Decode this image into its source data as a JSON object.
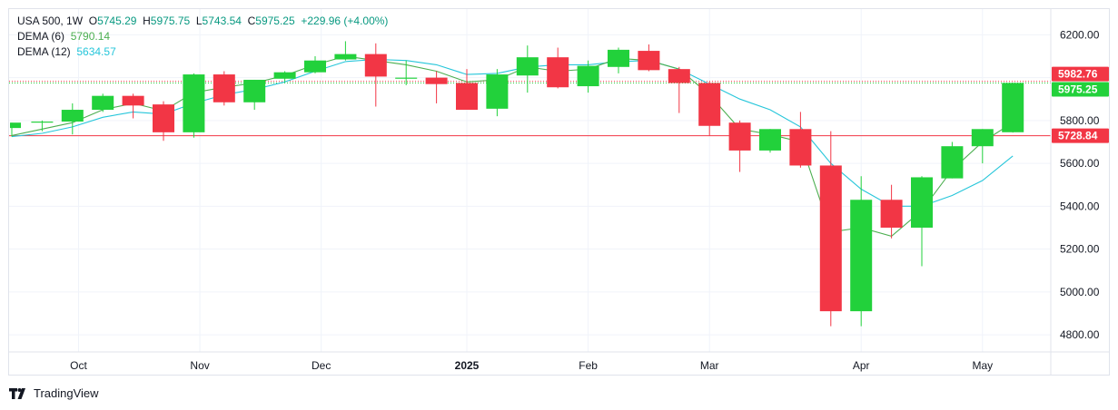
{
  "legend": {
    "symbol": "USA 500, 1W",
    "o_label": "O",
    "o_value": "5745.29",
    "h_label": "H",
    "h_value": "5975.75",
    "l_label": "L",
    "l_value": "5743.54",
    "c_label": "C",
    "c_value": "5975.25",
    "change": "+229.96 (+4.00%)",
    "dema6_label": "DEMA (6)",
    "dema6_value": "5790.14",
    "dema12_label": "DEMA (12)",
    "dema12_value": "5634.57"
  },
  "brand": {
    "name": "TradingView"
  },
  "colors": {
    "up": "#22d13b",
    "down": "#f23645",
    "dema6": "#4caf50",
    "dema12": "#26c6da",
    "line_red": "#f23645",
    "tag_red": "#f23645",
    "tag_green": "#22d13b",
    "grid": "#f0f3fa",
    "axis": "#e0e3eb"
  },
  "chart_data": {
    "type": "candlestick",
    "timeframe": "1W",
    "ylim": [
      4720,
      6320
    ],
    "y_ticks": [
      4800,
      5000,
      5200,
      5400,
      5600,
      5800,
      6000,
      6200
    ],
    "y_tick_labels": [
      "4800.00",
      "5000.00",
      "5200.00",
      "5400.00",
      "5600.00",
      "5800.00",
      "6000.00",
      "6200.00"
    ],
    "x_labels": [
      {
        "text": "Oct",
        "at": 2.2,
        "bold": false
      },
      {
        "text": "Nov",
        "at": 6.2,
        "bold": false
      },
      {
        "text": "Dec",
        "at": 10.2,
        "bold": false
      },
      {
        "text": "2025",
        "at": 15.0,
        "bold": true
      },
      {
        "text": "Feb",
        "at": 19.0,
        "bold": false
      },
      {
        "text": "Mar",
        "at": 23.0,
        "bold": false
      },
      {
        "text": "Apr",
        "at": 28.0,
        "bold": false
      },
      {
        "text": "May",
        "at": 32.0,
        "bold": false
      }
    ],
    "candles": [
      {
        "o": 5765,
        "h": 5790,
        "l": 5725,
        "c": 5790
      },
      {
        "o": 5790,
        "h": 5800,
        "l": 5750,
        "c": 5795
      },
      {
        "o": 5795,
        "h": 5880,
        "l": 5735,
        "c": 5850
      },
      {
        "o": 5850,
        "h": 5925,
        "l": 5840,
        "c": 5915
      },
      {
        "o": 5915,
        "h": 5925,
        "l": 5810,
        "c": 5870
      },
      {
        "o": 5875,
        "h": 5890,
        "l": 5705,
        "c": 5745
      },
      {
        "o": 5745,
        "h": 6020,
        "l": 5720,
        "c": 6015
      },
      {
        "o": 6015,
        "h": 6030,
        "l": 5870,
        "c": 5885
      },
      {
        "o": 5885,
        "h": 5990,
        "l": 5850,
        "c": 5990
      },
      {
        "o": 5995,
        "h": 6030,
        "l": 5980,
        "c": 6025
      },
      {
        "o": 6025,
        "h": 6100,
        "l": 6020,
        "c": 6080
      },
      {
        "o": 6085,
        "h": 6170,
        "l": 6080,
        "c": 6110
      },
      {
        "o": 6110,
        "h": 6160,
        "l": 5865,
        "c": 6005
      },
      {
        "o": 5995,
        "h": 6080,
        "l": 5965,
        "c": 6000
      },
      {
        "o": 6000,
        "h": 6030,
        "l": 5880,
        "c": 5970
      },
      {
        "o": 5975,
        "h": 6040,
        "l": 5850,
        "c": 5850
      },
      {
        "o": 5855,
        "h": 6040,
        "l": 5820,
        "c": 6015
      },
      {
        "o": 6010,
        "h": 6150,
        "l": 5930,
        "c": 6095
      },
      {
        "o": 6095,
        "h": 6140,
        "l": 5950,
        "c": 5955
      },
      {
        "o": 5960,
        "h": 6080,
        "l": 5930,
        "c": 6055
      },
      {
        "o": 6050,
        "h": 6140,
        "l": 6020,
        "c": 6130
      },
      {
        "o": 6125,
        "h": 6155,
        "l": 6030,
        "c": 6035
      },
      {
        "o": 6040,
        "h": 6050,
        "l": 5835,
        "c": 5975
      },
      {
        "o": 5975,
        "h": 5980,
        "l": 5730,
        "c": 5775
      },
      {
        "o": 5790,
        "h": 5800,
        "l": 5560,
        "c": 5660
      },
      {
        "o": 5660,
        "h": 5760,
        "l": 5650,
        "c": 5760
      },
      {
        "o": 5760,
        "h": 5840,
        "l": 5580,
        "c": 5590
      },
      {
        "o": 5590,
        "h": 5750,
        "l": 4840,
        "c": 4910
      },
      {
        "o": 4910,
        "h": 5540,
        "l": 4840,
        "c": 5430
      },
      {
        "o": 5430,
        "h": 5500,
        "l": 5250,
        "c": 5300
      },
      {
        "o": 5300,
        "h": 5540,
        "l": 5120,
        "c": 5535
      },
      {
        "o": 5530,
        "h": 5700,
        "l": 5530,
        "c": 5680
      },
      {
        "o": 5680,
        "h": 5760,
        "l": 5600,
        "c": 5760
      },
      {
        "o": 5745.29,
        "h": 5975.75,
        "l": 5743.54,
        "c": 5975.25
      }
    ],
    "dema6": [
      5730,
      5760,
      5790,
      5850,
      5880,
      5845,
      5930,
      5955,
      5975,
      6010,
      6060,
      6100,
      6080,
      6060,
      6030,
      5980,
      5990,
      6050,
      6030,
      6040,
      6090,
      6080,
      6040,
      5920,
      5760,
      5735,
      5700,
      5280,
      5300,
      5260,
      5380,
      5570,
      5700,
      5790.14
    ],
    "dema12": [
      5725,
      5740,
      5770,
      5815,
      5840,
      5830,
      5880,
      5920,
      5945,
      5980,
      6030,
      6075,
      6085,
      6080,
      6060,
      6015,
      6020,
      6050,
      6060,
      6060,
      6075,
      6080,
      6040,
      5970,
      5900,
      5850,
      5770,
      5600,
      5480,
      5400,
      5400,
      5450,
      5520,
      5634.57
    ],
    "price_lines": [
      {
        "label": "5982.76",
        "value": 5982.76,
        "style": "dotted",
        "color": "#f23645"
      },
      {
        "label": "5975.25",
        "value": 5975.25,
        "style": "dotted",
        "color": "#22d13b"
      },
      {
        "label": "5728.84",
        "value": 5728.84,
        "style": "solid",
        "color": "#f23645"
      }
    ]
  }
}
